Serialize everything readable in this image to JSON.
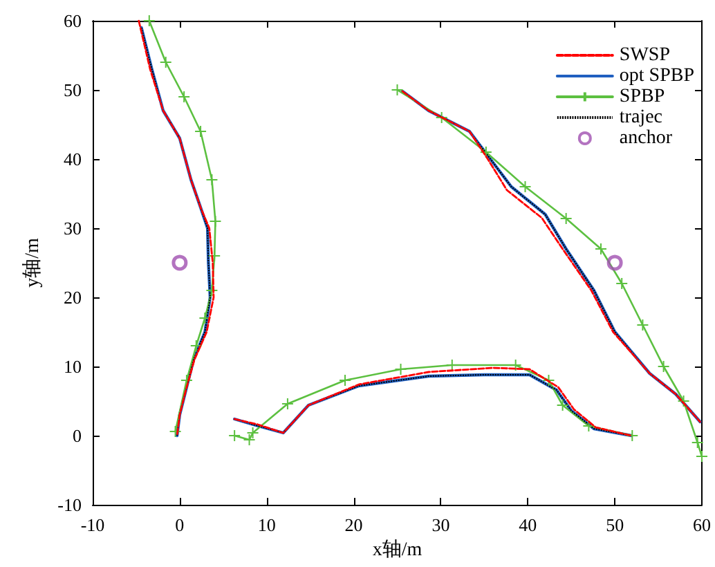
{
  "chart_data": {
    "type": "line",
    "xlabel": "x轴/m",
    "ylabel": "y轴/m",
    "xlim": [
      -10,
      60
    ],
    "ylim": [
      -10,
      60
    ],
    "xticks": [
      -10,
      0,
      10,
      20,
      30,
      40,
      50,
      60
    ],
    "yticks": [
      -10,
      0,
      10,
      20,
      30,
      40,
      50,
      60
    ],
    "grid": false,
    "legend": "top right",
    "series": [
      {
        "name": "SWSP",
        "color": "#ff0000",
        "line_style": "dashed",
        "marker": "none",
        "x": [
          -4.7,
          -3.4,
          -1.9,
          0,
          1.3,
          2.4,
          3.4,
          3.8,
          3.9,
          3.1,
          1.7,
          0.8,
          0,
          -0.3,
          null,
          25.6,
          28.6,
          33.3,
          35.4,
          37.6,
          41.6,
          44,
          47.3,
          49.8,
          54,
          57,
          59.8,
          null,
          6.3,
          9,
          11.9,
          14.8,
          20.6,
          28.6,
          36,
          40.2,
          43.5,
          45.3,
          47.8,
          51.9
        ],
        "values": [
          60,
          53,
          47,
          43,
          37,
          33,
          30,
          25,
          20,
          15,
          11,
          7,
          3,
          0,
          null,
          49.8,
          47,
          44,
          40,
          35.5,
          31.5,
          27,
          21,
          15,
          9,
          6,
          2,
          null,
          2.4,
          1.6,
          0.4,
          4.4,
          7.4,
          9.2,
          9.8,
          9.6,
          7,
          3.8,
          1.2,
          0
        ]
      },
      {
        "name": "opt SPBP",
        "color": "#1f5fc0",
        "line_style": "solid",
        "marker": "none",
        "x": [
          -4.4,
          -3.2,
          -1.9,
          0,
          1.3,
          2.4,
          3.2,
          3.3,
          3.5,
          2.9,
          1.6,
          0.8,
          0,
          -0.3,
          null,
          25.6,
          28.6,
          33.3,
          35.7,
          38.1,
          42,
          44.4,
          47.6,
          50,
          54,
          57,
          59.8,
          null,
          6.3,
          9,
          11.9,
          14.8,
          20.6,
          28.6,
          35,
          40.2,
          43.3,
          45,
          47.6,
          51.9
        ],
        "values": [
          59,
          53,
          47,
          43,
          37,
          33,
          30,
          25,
          20,
          15,
          11,
          7,
          3,
          0,
          null,
          49.8,
          47,
          44,
          40,
          36,
          32,
          27,
          21,
          15,
          9,
          6,
          2,
          null,
          2.4,
          1.4,
          0.4,
          4.4,
          7.2,
          8.6,
          8.8,
          8.8,
          6.6,
          3.6,
          1,
          0
        ]
      },
      {
        "name": "SPBP",
        "color": "#5cc040",
        "line_style": "solid",
        "marker": "cross",
        "x": [
          -3.5,
          -1.6,
          0.5,
          2.4,
          3.7,
          4.1,
          4,
          3.7,
          2.9,
          1.9,
          0.8,
          -0.5,
          null,
          25,
          30.1,
          35.2,
          39.7,
          44.4,
          48.4,
          50.8,
          53.2,
          55.6,
          57.9,
          59.5,
          60,
          null,
          6.3,
          8,
          8.4,
          12.4,
          19,
          25.4,
          31.3,
          38.6,
          42.4,
          44,
          47,
          52
        ],
        "values": [
          60,
          54,
          49,
          44,
          37,
          31,
          26,
          21,
          17,
          13,
          8,
          0.6,
          null,
          50,
          46,
          41,
          36,
          31.4,
          27,
          22,
          16,
          10,
          5,
          -1,
          -3,
          null,
          0,
          -0.6,
          0.4,
          4.6,
          8,
          9.6,
          10.2,
          10.2,
          8,
          4.4,
          1.4,
          0
        ]
      },
      {
        "name": "trajec",
        "color": "#000000",
        "line_style": "dotted",
        "marker": "none",
        "x": [
          -4.4,
          -3.2,
          -1.9,
          0,
          1.3,
          2.4,
          3.2,
          3.3,
          3.5,
          2.9,
          1.6,
          0.8,
          0,
          -0.3,
          null,
          25.6,
          28.6,
          33.3,
          35.7,
          38.1,
          42,
          44.4,
          47.6,
          50,
          54,
          57,
          59.8,
          null,
          6.3,
          9,
          11.9,
          14.8,
          20.6,
          28.6,
          35,
          40.2,
          43.3,
          45,
          47.6,
          51.9
        ],
        "values": [
          59,
          53,
          47,
          43,
          37,
          33,
          30,
          25,
          20,
          15,
          11,
          7,
          3,
          0,
          null,
          49.8,
          47,
          44,
          40,
          36,
          32,
          27,
          21,
          15,
          9,
          6,
          2,
          null,
          2.4,
          1.4,
          0.4,
          4.4,
          7.2,
          8.6,
          8.8,
          8.8,
          6.6,
          3.6,
          1,
          0
        ]
      },
      {
        "name": "anchor",
        "type": "scatter",
        "color": "#a050b0",
        "marker": "circle",
        "x": [
          0,
          50
        ],
        "values": [
          25,
          25
        ]
      }
    ]
  }
}
